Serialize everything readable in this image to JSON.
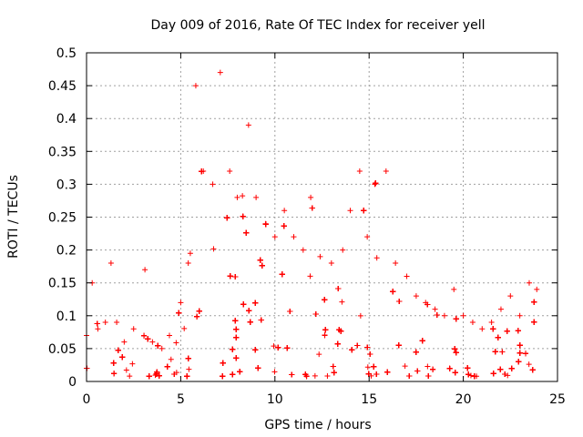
{
  "chart_data": {
    "type": "scatter",
    "title": "Day 009 of 2016, Rate Of TEC Index for receiver yell",
    "xlabel": "GPS time / hours",
    "ylabel": "ROTI / TECUs",
    "xlim": [
      0,
      25
    ],
    "ylim": [
      0,
      0.5
    ],
    "xticks": [
      0,
      5,
      10,
      15,
      20,
      25
    ],
    "yticks": [
      0,
      0.05,
      0.1,
      0.15,
      0.2,
      0.25,
      0.3,
      0.35,
      0.4,
      0.45,
      0.5
    ],
    "xtick_labels": [
      "0",
      "5",
      "10",
      "15",
      "20",
      "25"
    ],
    "ytick_labels": [
      "0",
      "0.05",
      "0.1",
      "0.15",
      "0.2",
      "0.25",
      "0.3",
      "0.35",
      "0.4",
      "0.45",
      "0.5"
    ],
    "grid": true,
    "marker": "plus",
    "series": [
      {
        "name": "ROTI",
        "color": "#ff0000",
        "x_range": [
          0,
          23.9
        ],
        "note": "dense point cloud; envelope (hour, approx max ROTI) below",
        "envelope": [
          [
            0.0,
            0.07
          ],
          [
            0.3,
            0.15
          ],
          [
            0.6,
            0.08
          ],
          [
            1.0,
            0.09
          ],
          [
            1.3,
            0.18
          ],
          [
            1.6,
            0.09
          ],
          [
            2.0,
            0.06
          ],
          [
            2.5,
            0.08
          ],
          [
            3.1,
            0.17
          ],
          [
            3.5,
            0.06
          ],
          [
            4.0,
            0.05
          ],
          [
            4.4,
            0.07
          ],
          [
            5.0,
            0.12
          ],
          [
            5.4,
            0.18
          ],
          [
            5.8,
            0.45
          ],
          [
            6.2,
            0.32
          ],
          [
            6.7,
            0.3
          ],
          [
            7.1,
            0.47
          ],
          [
            7.6,
            0.32
          ],
          [
            8.0,
            0.28
          ],
          [
            8.6,
            0.39
          ],
          [
            9.0,
            0.28
          ],
          [
            9.5,
            0.24
          ],
          [
            10.0,
            0.22
          ],
          [
            10.5,
            0.26
          ],
          [
            11.0,
            0.22
          ],
          [
            11.5,
            0.2
          ],
          [
            11.9,
            0.28
          ],
          [
            12.4,
            0.19
          ],
          [
            13.0,
            0.18
          ],
          [
            13.6,
            0.2
          ],
          [
            14.0,
            0.26
          ],
          [
            14.5,
            0.32
          ],
          [
            14.9,
            0.22
          ],
          [
            15.3,
            0.3
          ],
          [
            15.9,
            0.32
          ],
          [
            16.4,
            0.18
          ],
          [
            17.0,
            0.16
          ],
          [
            17.5,
            0.13
          ],
          [
            18.0,
            0.12
          ],
          [
            18.5,
            0.11
          ],
          [
            19.0,
            0.1
          ],
          [
            19.5,
            0.14
          ],
          [
            20.0,
            0.1
          ],
          [
            20.5,
            0.09
          ],
          [
            21.0,
            0.08
          ],
          [
            21.5,
            0.09
          ],
          [
            22.0,
            0.11
          ],
          [
            22.5,
            0.13
          ],
          [
            23.0,
            0.1
          ],
          [
            23.5,
            0.15
          ],
          [
            23.9,
            0.14
          ]
        ]
      }
    ]
  }
}
